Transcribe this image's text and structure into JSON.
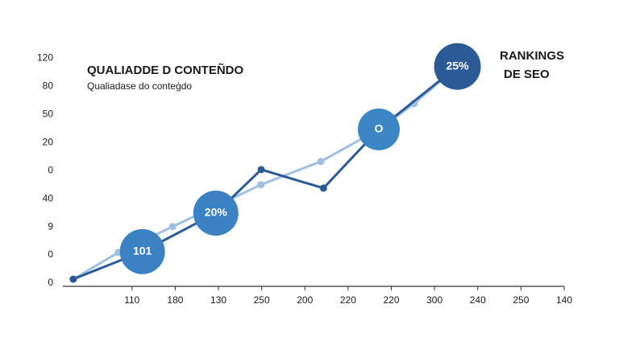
{
  "chart_data": {
    "type": "line",
    "title": "QUALIADDE D CONTEÑDO",
    "subtitle": "Qualiadase do conteģdo",
    "side_title": [
      "RANKINGS",
      "DE SEO"
    ],
    "annotations": [
      "101",
      "20%",
      "O",
      "25%"
    ],
    "xlim": [
      -1.6,
      10
    ],
    "xticks": [
      {
        "value": 0,
        "label": "110"
      },
      {
        "value": 1,
        "label": "180"
      },
      {
        "value": 2,
        "label": "130"
      },
      {
        "value": 3,
        "label": "250"
      },
      {
        "value": 4,
        "label": "200"
      },
      {
        "value": 5,
        "label": "220"
      },
      {
        "value": 6,
        "label": "220"
      },
      {
        "value": 7,
        "label": "300"
      },
      {
        "value": 8,
        "label": "240"
      },
      {
        "value": 9,
        "label": "250"
      },
      {
        "value": 10,
        "label": "140"
      }
    ],
    "ylim": [
      0,
      8.1
    ],
    "yticks": [
      {
        "value": 0,
        "label": "0"
      },
      {
        "value": 1,
        "label": "0"
      },
      {
        "value": 2,
        "label": "9"
      },
      {
        "value": 3,
        "label": "40"
      },
      {
        "value": 4,
        "label": "0"
      },
      {
        "value": 5,
        "label": "20"
      },
      {
        "value": 6,
        "label": "50"
      },
      {
        "value": 7,
        "label": "80"
      },
      {
        "value": 8,
        "label": "120"
      }
    ],
    "series": [
      {
        "color": "#2c5a97",
        "x": [
          -1.36,
          0.24,
          1.94,
          2.99,
          4.43,
          5.71,
          7.53
        ],
        "values": [
          0.14,
          1.12,
          2.49,
          4.04,
          3.38,
          5.47,
          7.71
        ]
      },
      {
        "color": "#9fc0e0",
        "x": [
          -1.36,
          -0.32,
          0.94,
          2.98,
          4.37,
          5.71,
          6.53,
          7.53
        ],
        "values": [
          0.14,
          1.09,
          2.01,
          3.5,
          4.33,
          5.47,
          6.39,
          7.71
        ]
      }
    ]
  }
}
